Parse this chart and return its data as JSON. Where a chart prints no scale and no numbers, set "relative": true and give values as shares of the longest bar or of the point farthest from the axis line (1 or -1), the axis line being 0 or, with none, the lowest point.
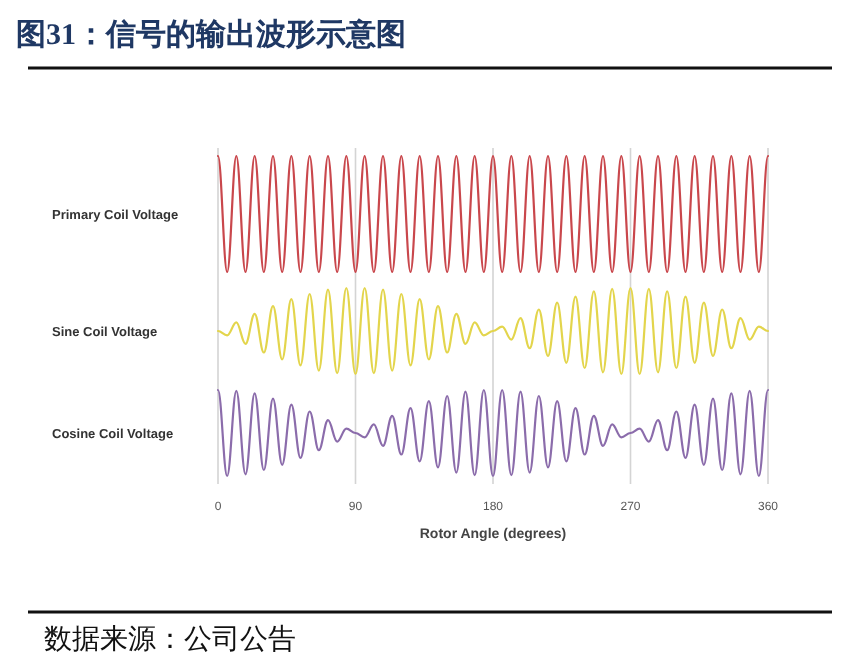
{
  "chart_data": [
    {
      "type": "line",
      "title": "图31：信号的输出波形示意图",
      "relative": true,
      "ylabel": "Primary Coil Voltage",
      "x": [
        0,
        6,
        12,
        18,
        24,
        30,
        36,
        42,
        48,
        54,
        60,
        66,
        72,
        78,
        84,
        90,
        96,
        102,
        108,
        114,
        120,
        126,
        132,
        138,
        144,
        150,
        156,
        162,
        168,
        174,
        180,
        186,
        192,
        198,
        204,
        210,
        216,
        222,
        228,
        234,
        240,
        246,
        252,
        258,
        264,
        270,
        276,
        282,
        288,
        294,
        300,
        306,
        312,
        318,
        324,
        330,
        336,
        342,
        348,
        354,
        360
      ],
      "xlim": [
        0,
        360
      ],
      "xticks": [
        0,
        90,
        180,
        270,
        360
      ],
      "grid": "x",
      "tick_labels": false,
      "series": [
        {
          "color": "#c9474c",
          "values": [
            1,
            0,
            1,
            0,
            1,
            0,
            1,
            0,
            1,
            0,
            1,
            0,
            1,
            0,
            1,
            0,
            1,
            0,
            1,
            0,
            1,
            0,
            1,
            0,
            1,
            0,
            1,
            0,
            1,
            0,
            1,
            0,
            1,
            0,
            1,
            0,
            1,
            0,
            1,
            0,
            1,
            0,
            1,
            0,
            1,
            0,
            1,
            0,
            1,
            0,
            1,
            0,
            1,
            0,
            1,
            0,
            1,
            0,
            1,
            0,
            1
          ]
        }
      ]
    },
    {
      "type": "line",
      "relative": true,
      "ylabel": "Sine Coil Voltage",
      "x": [
        0,
        6,
        12,
        18,
        24,
        30,
        36,
        42,
        48,
        54,
        60,
        66,
        72,
        78,
        84,
        90,
        96,
        102,
        108,
        114,
        120,
        126,
        132,
        138,
        144,
        150,
        156,
        162,
        168,
        174,
        180,
        186,
        192,
        198,
        204,
        210,
        216,
        222,
        228,
        234,
        240,
        246,
        252,
        258,
        264,
        270,
        276,
        282,
        288,
        294,
        300,
        306,
        312,
        318,
        324,
        330,
        336,
        342,
        348,
        354,
        360
      ],
      "xlim": [
        0,
        360
      ],
      "xticks": [
        0,
        90,
        180,
        270,
        360
      ],
      "grid": "x",
      "tick_labels": false,
      "series": [
        {
          "color": "#e3d54c",
          "values": [
            0.5,
            0.45,
            0.6,
            0.35,
            0.7,
            0.25,
            0.79,
            0.17,
            0.87,
            0.1,
            0.93,
            0.04,
            0.98,
            0.01,
            1,
            0,
            1,
            0.01,
            0.98,
            0.04,
            0.93,
            0.1,
            0.87,
            0.17,
            0.79,
            0.25,
            0.7,
            0.35,
            0.6,
            0.45,
            0.5,
            0.55,
            0.4,
            0.65,
            0.3,
            0.75,
            0.21,
            0.83,
            0.13,
            0.9,
            0.07,
            0.96,
            0.02,
            0.99,
            0,
            1,
            0,
            0.99,
            0.02,
            0.96,
            0.07,
            0.9,
            0.13,
            0.83,
            0.21,
            0.75,
            0.3,
            0.65,
            0.4,
            0.55,
            0.5
          ]
        }
      ]
    },
    {
      "type": "line",
      "relative": true,
      "ylabel": "Cosine Coil Voltage",
      "xlabel": "Rotor Angle (degrees)",
      "annotations": [
        "数据来源：公司公告"
      ],
      "x": [
        0,
        6,
        12,
        18,
        24,
        30,
        36,
        42,
        48,
        54,
        60,
        66,
        72,
        78,
        84,
        90,
        96,
        102,
        108,
        114,
        120,
        126,
        132,
        138,
        144,
        150,
        156,
        162,
        168,
        174,
        180,
        186,
        192,
        198,
        204,
        210,
        216,
        222,
        228,
        234,
        240,
        246,
        252,
        258,
        264,
        270,
        276,
        282,
        288,
        294,
        300,
        306,
        312,
        318,
        324,
        330,
        336,
        342,
        348,
        354,
        360
      ],
      "xlim": [
        0,
        360
      ],
      "xticks": [
        0,
        90,
        180,
        270,
        360
      ],
      "grid": "x",
      "tick_labels": "x",
      "series": [
        {
          "color": "#8b6cab",
          "values": [
            1,
            0,
            0.99,
            0.02,
            0.96,
            0.07,
            0.9,
            0.13,
            0.83,
            0.21,
            0.75,
            0.3,
            0.65,
            0.4,
            0.55,
            0.5,
            0.45,
            0.6,
            0.35,
            0.7,
            0.25,
            0.79,
            0.17,
            0.87,
            0.1,
            0.93,
            0.04,
            0.98,
            0.01,
            1,
            0,
            1,
            0.01,
            0.98,
            0.04,
            0.93,
            0.1,
            0.87,
            0.17,
            0.79,
            0.25,
            0.7,
            0.35,
            0.6,
            0.45,
            0.5,
            0.55,
            0.4,
            0.65,
            0.3,
            0.75,
            0.21,
            0.83,
            0.13,
            0.9,
            0.07,
            0.96,
            0.02,
            0.99,
            0,
            1
          ]
        }
      ]
    }
  ]
}
